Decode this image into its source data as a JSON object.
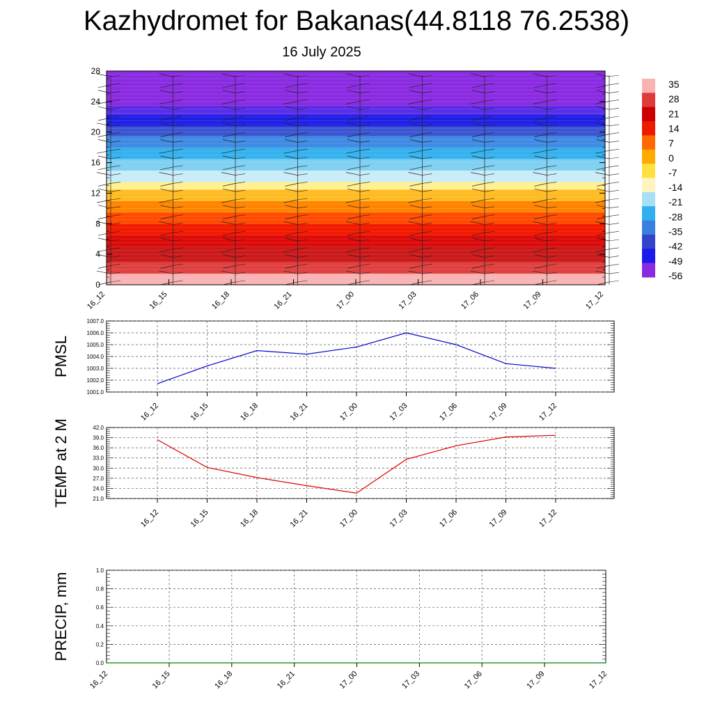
{
  "title": "Kazhydromet for Bakanas(44.8118 76.2538)",
  "subtitle": "16 July 2025",
  "chart_data": [
    {
      "type": "heatmap",
      "x_ticks": [
        "16_12",
        "16_15",
        "16_18",
        "16_21",
        "17_00",
        "17_03",
        "17_06",
        "17_09",
        "17_12"
      ],
      "y_ticks": [
        "0",
        "4",
        "8",
        "12",
        "16",
        "20",
        "24",
        "28"
      ],
      "ylim": [
        0,
        28
      ],
      "colorbar": {
        "labels": [
          "35",
          "28",
          "21",
          "14",
          "7",
          "0",
          "-7",
          "-14",
          "-21",
          "-28",
          "-35",
          "-42",
          "-49",
          "-56"
        ],
        "colors": [
          "#f9b3b3",
          "#e03a3a",
          "#cc0000",
          "#ee1a00",
          "#ff6a00",
          "#ffaa00",
          "#ffe040",
          "#fff4c0",
          "#a9dff5",
          "#30b0ee",
          "#3a7ee0",
          "#3344cc",
          "#1a1aee",
          "#8a2be2"
        ]
      },
      "heat_bands": [
        {
          "from": 0,
          "to": 1.5,
          "color": "#f9b3b3"
        },
        {
          "from": 1.5,
          "to": 3,
          "color": "#e04040"
        },
        {
          "from": 3,
          "to": 5,
          "color": "#cc1a1a"
        },
        {
          "from": 5,
          "to": 6.5,
          "color": "#dd0a0a"
        },
        {
          "from": 6.5,
          "to": 8,
          "color": "#f21a00"
        },
        {
          "from": 8,
          "to": 9.5,
          "color": "#ff4a00"
        },
        {
          "from": 9.5,
          "to": 11,
          "color": "#ff8400"
        },
        {
          "from": 11,
          "to": 12.5,
          "color": "#ffbb22"
        },
        {
          "from": 12.5,
          "to": 13.5,
          "color": "#fff090"
        },
        {
          "from": 13.5,
          "to": 15,
          "color": "#c9ecf8"
        },
        {
          "from": 15,
          "to": 16.5,
          "color": "#7fd0f2"
        },
        {
          "from": 16.5,
          "to": 18,
          "color": "#35b2ee"
        },
        {
          "from": 18,
          "to": 19.5,
          "color": "#3f8ae4"
        },
        {
          "from": 19.5,
          "to": 20.8,
          "color": "#3b55d2"
        },
        {
          "from": 20.8,
          "to": 22.3,
          "color": "#1f20e6"
        },
        {
          "from": 22.3,
          "to": 23.5,
          "color": "#5a2ee8"
        },
        {
          "from": 23.5,
          "to": 28,
          "color": "#8a2be2"
        }
      ]
    },
    {
      "type": "line",
      "ylabel": "PMSL",
      "ylim": [
        1001.0,
        1007.0
      ],
      "y_ticks": [
        "1001.0",
        "1002.0",
        "1003.0",
        "1004.0",
        "1005.0",
        "1006.0",
        "1007.0"
      ],
      "categories": [
        "16_12",
        "16_15",
        "16_18",
        "16_21",
        "17_00",
        "17_03",
        "17_06",
        "17_09",
        "17_12"
      ],
      "values": [
        1001.7,
        1003.2,
        1004.5,
        1004.2,
        1004.8,
        1006.0,
        1005.0,
        1003.4,
        1003.0
      ],
      "color": "#0000cc"
    },
    {
      "type": "line",
      "ylabel": "TEMP at 2 M",
      "ylim": [
        21.0,
        42.0
      ],
      "y_ticks": [
        "21.0",
        "24.0",
        "27.0",
        "30.0",
        "33.0",
        "36.0",
        "39.0",
        "42.0"
      ],
      "categories": [
        "16_12",
        "16_15",
        "16_18",
        "16_21",
        "17_00",
        "17_03",
        "17_06",
        "17_09",
        "17_12"
      ],
      "values": [
        38.4,
        30.2,
        27.2,
        24.8,
        22.6,
        32.6,
        36.6,
        39.2,
        39.7
      ],
      "color": "#e00000"
    },
    {
      "type": "line",
      "ylabel": "PRECIP, mm",
      "ylim": [
        0.0,
        1.0
      ],
      "y_ticks": [
        "0.0",
        "0.2",
        "0.4",
        "0.6",
        "0.8",
        "1.0"
      ],
      "categories": [
        "16_12",
        "16_15",
        "16_18",
        "16_21",
        "17_00",
        "17_03",
        "17_06",
        "17_09",
        "17_12"
      ],
      "values": [
        0,
        0,
        0,
        0,
        0,
        0,
        0,
        0,
        0
      ],
      "color": "#008000"
    }
  ]
}
